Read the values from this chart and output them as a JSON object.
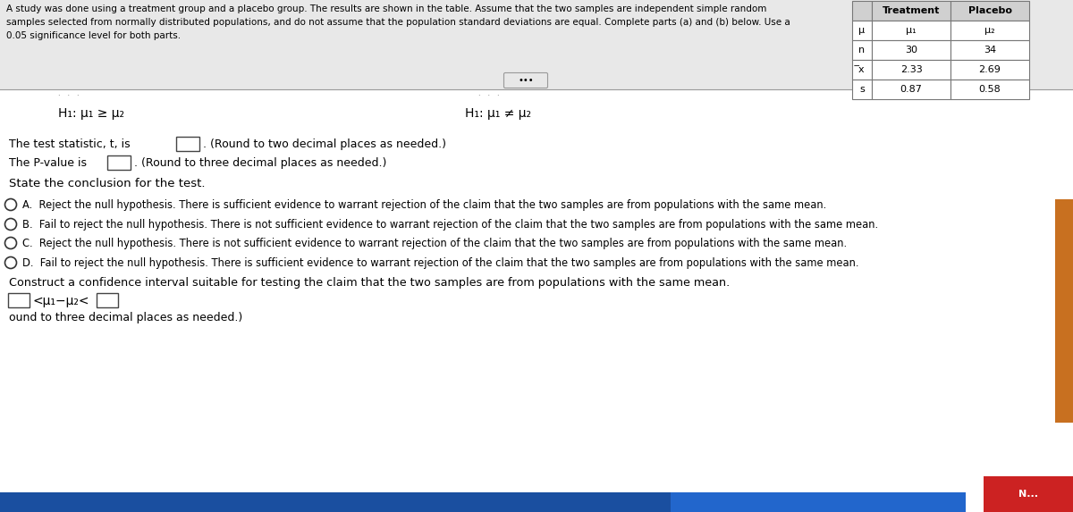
{
  "bg_color": "#e8e8e8",
  "white": "#ffffff",
  "black": "#000000",
  "dark_gray": "#333333",
  "mid_gray": "#666666",
  "light_gray": "#cccccc",
  "blue_bar": "#1a4fa0",
  "blue_bar2": "#2266cc",
  "red_box": "#cc2222",
  "intro_text_line1": "A study was done using a treatment group and a placebo group. The results are shown in the table. Assume that the two samples are independent simple random",
  "intro_text_line2": "samples selected from normally distributed populations, and do not assume that the population standard deviations are equal. Complete parts (a) and (b) below. Use a",
  "intro_text_line3": "0.05 significance level for both parts.",
  "table_headers": [
    "",
    "Treatment",
    "Placebo"
  ],
  "table_row0": [
    "μ",
    "μ₁",
    "μ₂"
  ],
  "table_row1": [
    "n",
    "30",
    "34"
  ],
  "table_row2": [
    "̅x",
    "2.33",
    "2.69"
  ],
  "table_row3": [
    "s",
    "0.87",
    "0.58"
  ],
  "h0_label": "H₁: μ₁ ≥ μ₂",
  "h1_label": "H₁: μ₁ ≠ μ₂",
  "dots_button": "•••",
  "test_stat_pre": "The test statistic, t, is",
  "test_stat_post": ". (Round to two decimal places as needed.)",
  "pvalue_pre": "The P-value is",
  "pvalue_post": ". (Round to three decimal places as needed.)",
  "conclusion_header": "State the conclusion for the test.",
  "opt_A": "A.  Reject the null hypothesis. There is sufficient evidence to warrant rejection of the claim that the two samples are from populations with the same mean.",
  "opt_B": "B.  Fail to reject the null hypothesis. There is not sufficient evidence to warrant rejection of the claim that the two samples are from populations with the same mean.",
  "opt_C": "C.  Reject the null hypothesis. There is not sufficient evidence to warrant rejection of the claim that the two samples are from populations with the same mean.",
  "opt_D": "D.  Fail to reject the null hypothesis. There is sufficient evidence to warrant rejection of the claim that the two samples are from populations with the same mean.",
  "ci_header": "Construct a confidence interval suitable for testing the claim that the two samples are from populations with the same mean.",
  "ci_left_bracket": "<",
  "ci_mid": "μ₁−μ₂",
  "ci_right_bracket": "<",
  "ci_suffix": "ound to three decimal places as needed.)",
  "footer_text": "N...",
  "separator_color": "#999999",
  "table_border": "#777777"
}
